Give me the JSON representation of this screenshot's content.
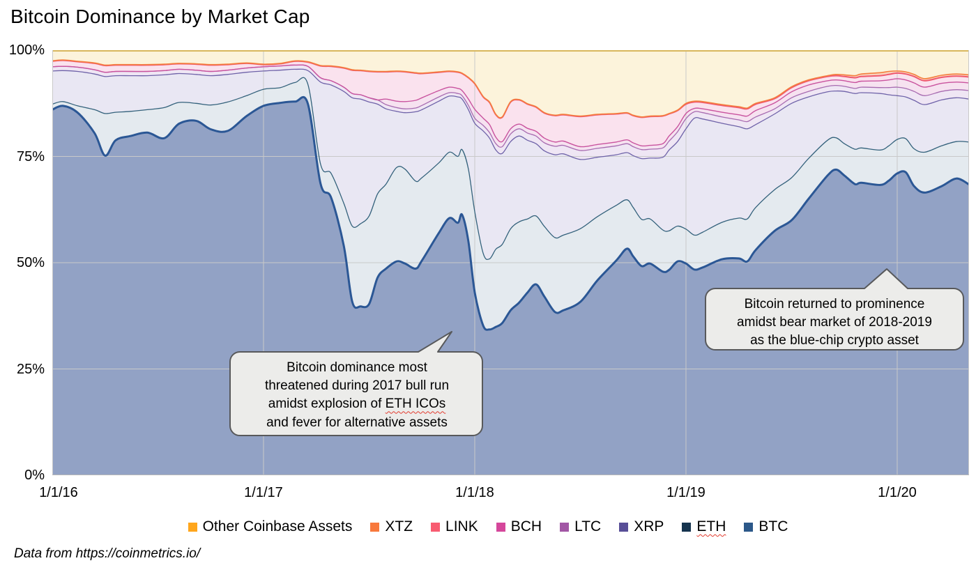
{
  "title": "Bitcoin Dominance by Market Cap",
  "footer": {
    "text": "Data from https://coinmetrics.io/"
  },
  "y_axis": {
    "tick_labels": [
      "100%",
      "75%",
      "50%",
      "25%",
      "0%"
    ],
    "tick_values": [
      100,
      75,
      50,
      25,
      0
    ]
  },
  "x_axis": {
    "tick_labels": [
      "1/1/16",
      "1/1/17",
      "1/1/18",
      "1/1/19",
      "1/1/20"
    ],
    "tick_values": [
      0,
      1,
      2,
      3,
      4
    ]
  },
  "legend": {
    "items": [
      {
        "key": "other",
        "label": "Other Coinbase Assets",
        "color": "#FFA61C",
        "squiggle": false
      },
      {
        "key": "xtz",
        "label": "XTZ",
        "color": "#F8793C",
        "squiggle": false
      },
      {
        "key": "link",
        "label": "LINK",
        "color": "#F85C71",
        "squiggle": false
      },
      {
        "key": "bch",
        "label": "BCH",
        "color": "#D5479B",
        "squiggle": false
      },
      {
        "key": "ltc",
        "label": "LTC",
        "color": "#A257A5",
        "squiggle": false
      },
      {
        "key": "xrp",
        "label": "XRP",
        "color": "#584E97",
        "squiggle": false
      },
      {
        "key": "eth",
        "label": "ETH",
        "color": "#15334E",
        "squiggle": true
      },
      {
        "key": "btc",
        "label": "BTC",
        "color": "#2C5889",
        "squiggle": false
      }
    ]
  },
  "callouts": [
    {
      "name": "callout-2017",
      "lines": [
        [
          {
            "t": "Bitcoin dominance most"
          }
        ],
        [
          {
            "t": "threatened during 2017 bull run"
          }
        ],
        [
          {
            "t": "amidst explosion of "
          },
          {
            "t": "ETH ICOs",
            "sq": true
          }
        ],
        [
          {
            "t": "and fever for alternative assets"
          }
        ]
      ]
    },
    {
      "name": "callout-2019",
      "lines": [
        [
          {
            "t": "Bitcoin returned to prominence"
          }
        ],
        [
          {
            "t": "amidst bear market of 2018-2019"
          }
        ],
        [
          {
            "t": "as the blue-chip crypto asset"
          }
        ]
      ]
    }
  ],
  "chart_data": {
    "type": "area",
    "stacked": true,
    "normalized": "100%",
    "title": "Bitcoin Dominance by Market Cap",
    "ylim": [
      0,
      100
    ],
    "grid": true,
    "legend_position": "bottom",
    "x_unit": "years since 1/1/16",
    "x_max": 4.34,
    "values_are": "cumulative_stack_top_percent",
    "x": [
      0,
      0.05,
      0.12,
      0.2,
      0.25,
      0.3,
      0.37,
      0.45,
      0.53,
      0.6,
      0.68,
      0.75,
      0.83,
      0.92,
      1.0,
      1.08,
      1.15,
      1.21,
      1.27,
      1.32,
      1.38,
      1.42,
      1.46,
      1.5,
      1.54,
      1.58,
      1.63,
      1.67,
      1.72,
      1.75,
      1.83,
      1.88,
      1.92,
      1.94,
      1.97,
      2.0,
      2.04,
      2.07,
      2.1,
      2.13,
      2.17,
      2.21,
      2.25,
      2.29,
      2.33,
      2.38,
      2.42,
      2.5,
      2.58,
      2.67,
      2.72,
      2.75,
      2.79,
      2.83,
      2.89,
      2.92,
      2.96,
      3.0,
      3.04,
      3.08,
      3.17,
      3.25,
      3.29,
      3.33,
      3.42,
      3.5,
      3.58,
      3.67,
      3.71,
      3.75,
      3.8,
      3.83,
      3.92,
      3.96,
      4.0,
      4.04,
      4.08,
      4.13,
      4.21,
      4.28,
      4.34
    ],
    "series": [
      {
        "name": "BTC",
        "line_color": "#2B5795",
        "fill_color": "#92A2C5",
        "line_width": 3,
        "top": [
          86.0,
          86.9,
          85.3,
          80.5,
          75.2,
          78.8,
          79.8,
          80.6,
          79.3,
          82.7,
          83.4,
          81.4,
          81.0,
          84.5,
          86.9,
          87.6,
          87.9,
          87.4,
          68.6,
          65.3,
          54.0,
          40.8,
          39.7,
          40.3,
          46.5,
          48.6,
          50.3,
          49.8,
          48.6,
          50.5,
          57.0,
          60.5,
          59.4,
          61.3,
          55.0,
          43.0,
          35.2,
          34.3,
          34.9,
          35.8,
          38.8,
          40.6,
          43.0,
          44.9,
          42.0,
          38.4,
          38.8,
          40.8,
          45.8,
          50.5,
          53.3,
          51.5,
          49.2,
          49.8,
          47.9,
          48.3,
          50.3,
          49.8,
          48.4,
          48.9,
          50.8,
          51.0,
          50.3,
          53.0,
          57.5,
          60.0,
          65.0,
          70.5,
          71.9,
          70.5,
          68.5,
          68.8,
          68.3,
          69.3,
          71.0,
          71.3,
          68.0,
          66.5,
          68.0,
          69.8,
          68.4
        ]
      },
      {
        "name": "ETH",
        "line_color": "#33617B",
        "fill_color": "#E4EAEF",
        "line_width": 1.3,
        "top": [
          87.3,
          87.9,
          86.9,
          86.0,
          85.1,
          85.4,
          85.6,
          86.0,
          86.5,
          87.7,
          87.5,
          87.1,
          87.8,
          89.3,
          90.8,
          91.2,
          92.4,
          92.0,
          73.2,
          71.0,
          64.0,
          58.6,
          59.2,
          61.0,
          66.2,
          68.5,
          72.4,
          72.0,
          69.2,
          70.0,
          73.5,
          76.0,
          75.0,
          76.6,
          72.0,
          62.0,
          52.2,
          50.9,
          53.2,
          54.3,
          58.0,
          59.6,
          60.3,
          61.0,
          58.5,
          55.9,
          56.5,
          58.0,
          60.8,
          63.5,
          64.8,
          63.0,
          60.2,
          60.3,
          57.7,
          57.5,
          58.6,
          57.9,
          56.5,
          57.2,
          59.5,
          60.5,
          60.3,
          63.0,
          67.2,
          70.0,
          74.5,
          78.8,
          79.4,
          78.0,
          76.7,
          77.0,
          76.5,
          77.5,
          79.0,
          79.2,
          76.8,
          76.0,
          77.5,
          78.5,
          78.4
        ]
      },
      {
        "name": "XRP",
        "line_color": "#6E62A8",
        "fill_color": "#E9E7F3",
        "line_width": 1.3,
        "top": [
          95.1,
          95.2,
          95.0,
          94.4,
          93.8,
          94.0,
          94.0,
          94.0,
          94.2,
          94.5,
          94.3,
          94.0,
          94.3,
          94.8,
          95.1,
          95.3,
          95.5,
          95.2,
          92.5,
          91.8,
          90.3,
          88.8,
          88.5,
          87.8,
          87.3,
          86.2,
          85.6,
          85.3,
          85.5,
          86.0,
          88.0,
          89.2,
          89.0,
          88.5,
          86.0,
          82.8,
          81.0,
          79.3,
          76.5,
          75.7,
          78.5,
          79.8,
          78.8,
          78.0,
          76.3,
          75.4,
          75.6,
          74.3,
          74.8,
          75.4,
          75.9,
          75.2,
          74.5,
          74.6,
          74.8,
          76.5,
          78.5,
          81.5,
          84.0,
          83.8,
          82.8,
          82.0,
          81.5,
          82.5,
          85.0,
          87.5,
          89.0,
          90.2,
          90.4,
          90.3,
          89.8,
          90.0,
          89.8,
          89.5,
          89.3,
          89.0,
          88.2,
          87.2,
          88.3,
          88.8,
          88.5
        ]
      },
      {
        "name": "LTC",
        "line_color": "#A76BB0",
        "fill_color": "#EFE6F4",
        "line_width": 1.3,
        "top": [
          96.1,
          96.2,
          96.0,
          95.4,
          94.8,
          95.0,
          95.0,
          95.0,
          95.2,
          95.5,
          95.3,
          95.0,
          95.3,
          95.8,
          96.1,
          96.3,
          96.5,
          96.2,
          93.5,
          92.8,
          91.3,
          89.8,
          89.5,
          88.8,
          88.3,
          87.2,
          86.5,
          86.2,
          86.4,
          87.0,
          89.0,
          90.0,
          89.8,
          89.3,
          87.0,
          84.0,
          82.3,
          80.6,
          78.0,
          77.3,
          80.3,
          81.5,
          80.5,
          79.8,
          78.2,
          77.4,
          77.6,
          76.4,
          76.9,
          77.5,
          78.0,
          77.3,
          76.6,
          76.7,
          77.0,
          78.6,
          80.8,
          83.9,
          85.5,
          85.3,
          84.3,
          83.6,
          83.2,
          84.3,
          86.2,
          88.8,
          90.3,
          91.5,
          91.7,
          91.5,
          91.0,
          91.3,
          91.2,
          91.2,
          91.3,
          91.0,
          90.3,
          89.3,
          90.3,
          90.7,
          90.5
        ]
      },
      {
        "name": "BCH",
        "line_color": "#C9539E",
        "fill_color": "#F6E2F0",
        "line_width": 1.4,
        "top": [
          96.1,
          96.2,
          96.0,
          95.4,
          94.8,
          95.0,
          95.0,
          95.0,
          95.2,
          95.5,
          95.3,
          95.0,
          95.3,
          95.8,
          96.1,
          96.3,
          96.5,
          96.2,
          93.5,
          92.8,
          91.3,
          89.8,
          89.5,
          88.8,
          88.3,
          88.5,
          88.0,
          87.9,
          88.2,
          88.8,
          90.5,
          91.3,
          91.0,
          90.5,
          88.5,
          86.1,
          84.0,
          82.5,
          79.5,
          78.5,
          81.5,
          82.6,
          81.6,
          80.9,
          79.3,
          78.4,
          78.6,
          77.3,
          77.8,
          78.4,
          78.9,
          78.2,
          77.5,
          77.6,
          78.0,
          79.8,
          82.0,
          85.1,
          86.3,
          86.2,
          85.4,
          84.8,
          84.5,
          85.8,
          87.6,
          90.2,
          91.8,
          92.8,
          93.0,
          92.8,
          92.4,
          92.7,
          92.8,
          93.0,
          93.3,
          93.0,
          92.3,
          91.3,
          92.2,
          92.5,
          92.3
        ]
      },
      {
        "name": "LINK",
        "line_color": "#F0586E",
        "fill_color": "#FAE2EE",
        "line_width": 2,
        "top": [
          97.4,
          97.6,
          97.3,
          96.9,
          96.4,
          96.5,
          96.5,
          96.5,
          96.6,
          96.8,
          96.7,
          96.5,
          96.6,
          96.9,
          96.6,
          96.8,
          97.4,
          97.2,
          96.3,
          96.2,
          95.8,
          95.3,
          95.2,
          95.0,
          94.9,
          94.9,
          95.0,
          94.9,
          94.6,
          94.5,
          94.8,
          95.0,
          94.8,
          94.5,
          93.5,
          92.1,
          89.0,
          87.7,
          84.8,
          84.2,
          87.8,
          88.3,
          87.3,
          86.6,
          85.2,
          84.6,
          84.8,
          84.4,
          84.8,
          85.0,
          85.2,
          84.6,
          84.2,
          84.4,
          84.5,
          85.0,
          85.8,
          87.3,
          87.8,
          87.7,
          87.0,
          86.5,
          86.2,
          87.3,
          88.6,
          91.2,
          92.8,
          93.8,
          94.0,
          93.8,
          93.5,
          93.8,
          94.0,
          94.3,
          94.6,
          94.4,
          93.8,
          92.8,
          93.6,
          93.9,
          93.7
        ]
      },
      {
        "name": "XTZ",
        "line_color": "#F47E3E",
        "fill_color": "#F9D4BF",
        "line_width": 1.6,
        "top": [
          97.5,
          97.7,
          97.4,
          97.0,
          96.5,
          96.6,
          96.6,
          96.6,
          96.7,
          96.9,
          96.8,
          96.6,
          96.7,
          97.0,
          96.7,
          96.9,
          97.5,
          97.3,
          96.4,
          96.3,
          95.9,
          95.4,
          95.3,
          95.1,
          95.0,
          95.0,
          95.1,
          95.0,
          94.7,
          94.6,
          94.9,
          95.1,
          94.9,
          94.6,
          93.6,
          92.2,
          89.1,
          87.8,
          84.9,
          84.3,
          87.9,
          88.4,
          87.4,
          86.7,
          85.3,
          84.7,
          84.9,
          84.5,
          84.9,
          85.1,
          85.3,
          84.7,
          84.3,
          84.5,
          84.6,
          85.1,
          85.9,
          87.5,
          88.0,
          87.9,
          87.2,
          86.7,
          86.4,
          87.5,
          88.8,
          91.4,
          93.0,
          94.0,
          94.3,
          94.2,
          94.0,
          94.4,
          94.7,
          95.0,
          95.1,
          94.9,
          94.3,
          93.3,
          94.1,
          94.4,
          94.2
        ]
      }
    ],
    "other_band": {
      "name": "Other Coinbase Assets",
      "fill_color": "#FCF3DB",
      "top_value": 100
    },
    "gridline_color": "#c9c9c9",
    "plot_top_border_color": "#D8B75C"
  }
}
